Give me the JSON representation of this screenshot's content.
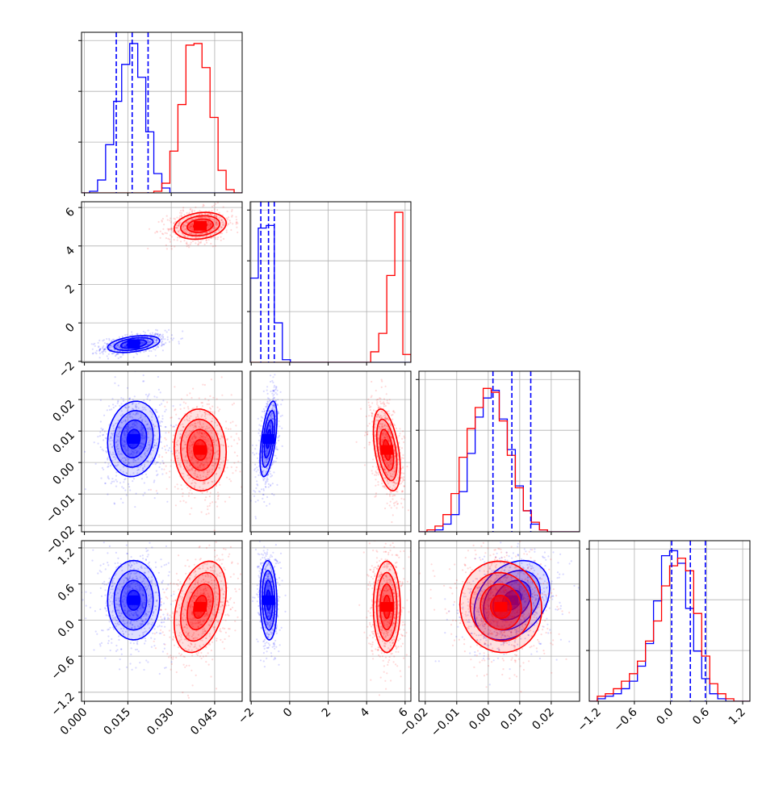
{
  "colors": {
    "blue": "#0000ff",
    "red": "#ff0000",
    "grid": "#b0b0b0",
    "axis": "#000000"
  },
  "chart_data": {
    "type": "corner",
    "description_of_layout": "4x4 lower-triangular grid of histograms (diagonal) and 2D scatter+contour panels",
    "grid": true,
    "series": [
      {
        "key": "blue",
        "color": "#0000ff"
      },
      {
        "key": "red",
        "color": "#ff0000"
      }
    ],
    "params": [
      {
        "range": [
          -0.001,
          0.0545
        ],
        "ticks": [
          "0.000",
          "0.015",
          "0.030",
          "0.045"
        ],
        "tick_values": [
          0.0,
          0.015,
          0.03,
          0.045
        ]
      },
      {
        "range": [
          -2.05,
          6.3
        ],
        "ticks": [
          "−2",
          "0",
          "2",
          "4",
          "6"
        ],
        "tick_values": [
          -2,
          0,
          2,
          4,
          6
        ]
      },
      {
        "range": [
          -0.022,
          0.029
        ],
        "ticks": [
          "−0.02",
          "−0.01",
          "0.00",
          "0.01",
          "0.02"
        ],
        "tick_values": [
          -0.02,
          -0.01,
          0.0,
          0.01,
          0.02
        ]
      },
      {
        "range": [
          -1.35,
          1.32
        ],
        "ticks": [
          "−1.2",
          "−0.6",
          "0.0",
          "0.6",
          "1.2"
        ],
        "tick_values": [
          -1.2,
          -0.6,
          0.0,
          0.6,
          1.2
        ]
      }
    ],
    "quantiles_blue": [
      [
        0.011,
        0.0165,
        0.022
      ],
      [
        -1.5,
        -1.1,
        -0.8
      ],
      [
        0.0015,
        0.0075,
        0.0135
      ],
      [
        0.02,
        0.33,
        0.58
      ]
    ],
    "histograms": [
      {
        "bins": [
          -0.001,
          0.0545,
          20
        ],
        "blue": [
          0,
          1,
          8,
          30,
          57,
          80,
          93,
          72,
          38,
          12,
          3,
          0,
          0,
          0,
          0,
          0,
          0,
          0,
          0,
          0
        ],
        "red": [
          0,
          0,
          0,
          0,
          0,
          0,
          0,
          0,
          0,
          1,
          6,
          26,
          55,
          92,
          93,
          78,
          47,
          14,
          2,
          0
        ],
        "ymax": 100
      },
      {
        "bins": [
          -2.05,
          6.3,
          20
        ],
        "blue": [
          32,
          51,
          52,
          15,
          1,
          0,
          0,
          0,
          0,
          0,
          0,
          0,
          0,
          0,
          0,
          0,
          0,
          0,
          0,
          0
        ],
        "red": [
          0,
          0,
          0,
          0,
          0,
          0,
          0,
          0,
          0,
          0,
          0,
          0,
          0,
          0,
          0,
          4,
          11,
          33,
          57,
          3
        ],
        "ymax": 61
      },
      {
        "bins": [
          -0.022,
          0.029,
          20
        ],
        "blue": [
          0,
          0,
          1,
          4,
          9,
          21,
          41,
          60,
          70,
          74,
          59,
          43,
          24,
          11,
          4,
          1,
          0,
          0,
          0,
          0
        ],
        "red": [
          0,
          1,
          3,
          9,
          20,
          39,
          54,
          65,
          75,
          73,
          58,
          40,
          23,
          11,
          5,
          1,
          0,
          0,
          0,
          0
        ],
        "ymax": 84
      },
      {
        "bins": [
          -1.35,
          1.32,
          20
        ],
        "blue": [
          0,
          1,
          2,
          3,
          5,
          8,
          14,
          23,
          40,
          58,
          60,
          55,
          37,
          20,
          9,
          3,
          1,
          0,
          0,
          0
        ],
        "red": [
          0,
          2,
          3,
          5,
          8,
          11,
          16,
          24,
          32,
          46,
          54,
          57,
          52,
          35,
          18,
          7,
          3,
          1,
          0,
          0
        ],
        "ymax": 64
      }
    ],
    "blobs": {
      "blue": {
        "mean": [
          0.017,
          -1.1,
          0.0075,
          0.33
        ],
        "sd": [
          0.0045,
          0.22,
          0.006,
          0.33
        ],
        "corr": {
          "0-1": 0.4,
          "0-2": 0.1,
          "0-3": 0.0,
          "1-2": 0.55,
          "1-3": -0.1,
          "2-3": 0.3
        }
      },
      "red": {
        "mean": [
          0.04,
          5.05,
          0.004,
          0.22
        ],
        "sd": [
          0.0045,
          0.35,
          0.0065,
          0.38
        ],
        "corr": {
          "0-1": 0.2,
          "0-2": -0.05,
          "0-3": 0.35,
          "1-2": -0.45,
          "1-3": 0.0,
          "2-3": -0.05
        }
      }
    }
  }
}
